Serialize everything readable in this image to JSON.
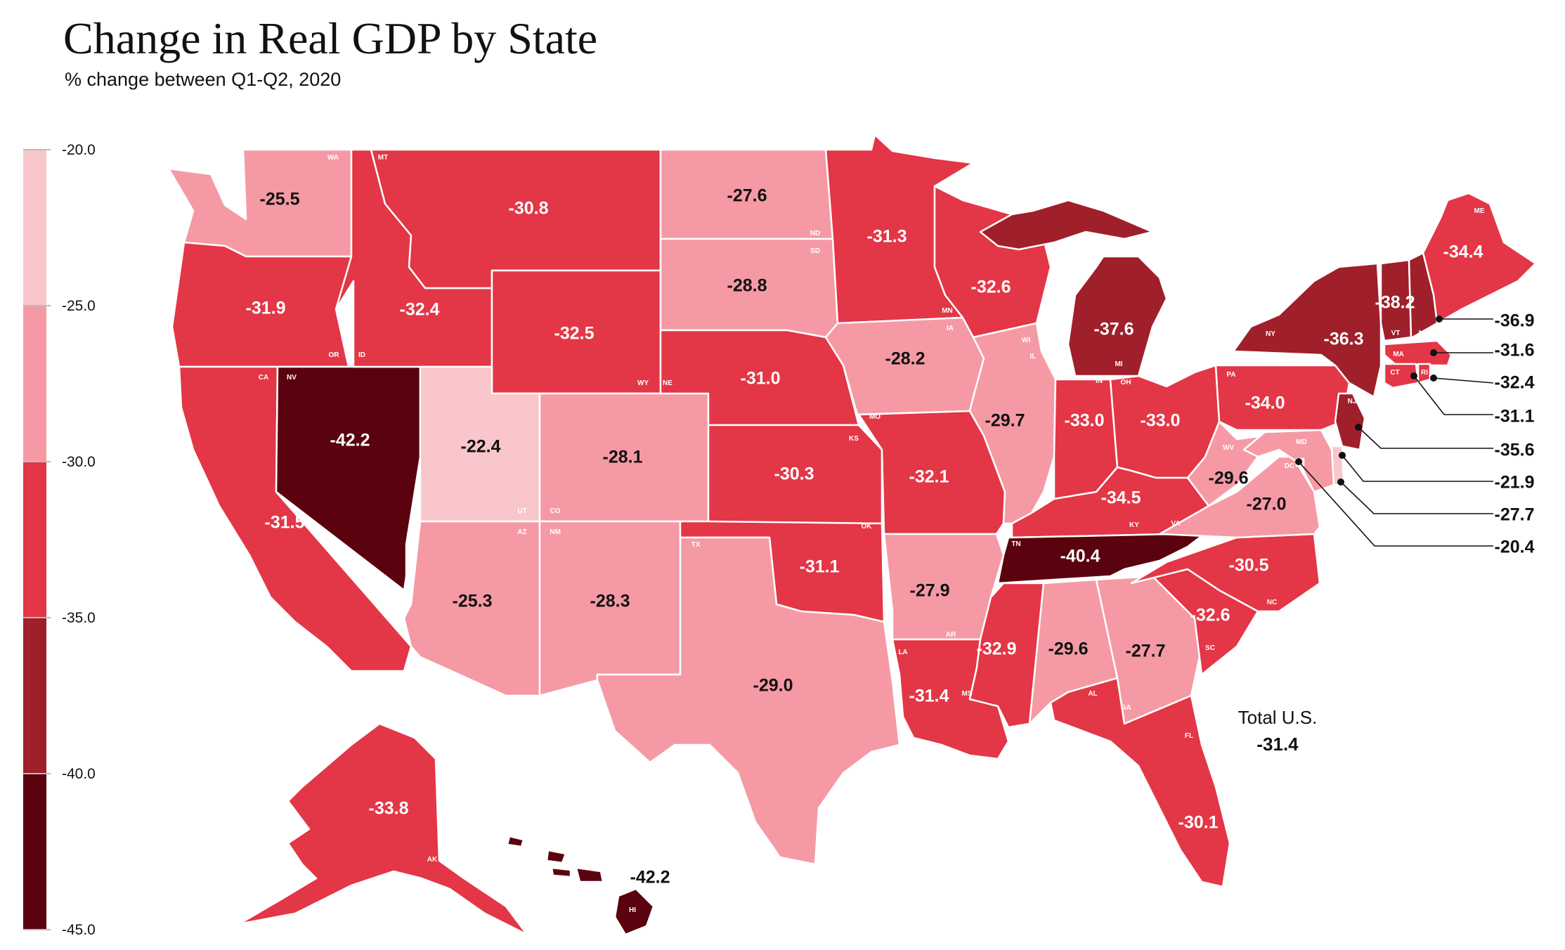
{
  "title": "Change in Real GDP by State",
  "subtitle": "% change between Q1-Q2, 2020",
  "legend": {
    "ticks": [
      "-20.0",
      "-25.0",
      "-30.0",
      "-35.0",
      "-40.0",
      "-45.0"
    ],
    "bins": [
      {
        "min": -25,
        "max": -20,
        "color": "#f9c6cb"
      },
      {
        "min": -30,
        "max": -25,
        "color": "#f59aa5"
      },
      {
        "min": -35,
        "max": -30,
        "color": "#e33646"
      },
      {
        "min": -40,
        "max": -35,
        "color": "#9f1f2a"
      },
      {
        "min": -45,
        "max": -40,
        "color": "#5a020d"
      }
    ]
  },
  "total_us": {
    "label": "Total U.S.",
    "value": "-31.4"
  },
  "states": [
    {
      "abbr": "WA",
      "value": "-25.5"
    },
    {
      "abbr": "OR",
      "value": "-31.9"
    },
    {
      "abbr": "CA",
      "value": "-31.5"
    },
    {
      "abbr": "NV",
      "value": "-42.2"
    },
    {
      "abbr": "ID",
      "value": "-32.4"
    },
    {
      "abbr": "MT",
      "value": "-30.8"
    },
    {
      "abbr": "WY",
      "value": "-32.5"
    },
    {
      "abbr": "UT",
      "value": "-22.4"
    },
    {
      "abbr": "CO",
      "value": "-28.1"
    },
    {
      "abbr": "AZ",
      "value": "-25.3"
    },
    {
      "abbr": "NM",
      "value": "-28.3"
    },
    {
      "abbr": "ND",
      "value": "-27.6"
    },
    {
      "abbr": "SD",
      "value": "-28.8"
    },
    {
      "abbr": "NE",
      "value": "-31.0"
    },
    {
      "abbr": "KS",
      "value": "-30.3"
    },
    {
      "abbr": "OK",
      "value": "-31.1"
    },
    {
      "abbr": "TX",
      "value": "-29.0"
    },
    {
      "abbr": "MN",
      "value": "-31.3"
    },
    {
      "abbr": "IA",
      "value": "-28.2"
    },
    {
      "abbr": "MO",
      "value": "-32.1"
    },
    {
      "abbr": "AR",
      "value": "-27.9"
    },
    {
      "abbr": "LA",
      "value": "-31.4"
    },
    {
      "abbr": "WI",
      "value": "-32.6"
    },
    {
      "abbr": "IL",
      "value": "-29.7"
    },
    {
      "abbr": "MI",
      "value": "-37.6"
    },
    {
      "abbr": "IN",
      "value": "-33.0"
    },
    {
      "abbr": "OH",
      "value": "-33.0"
    },
    {
      "abbr": "KY",
      "value": "-34.5"
    },
    {
      "abbr": "TN",
      "value": "-40.4"
    },
    {
      "abbr": "MS",
      "value": "-32.9"
    },
    {
      "abbr": "AL",
      "value": "-29.6"
    },
    {
      "abbr": "GA",
      "value": "-27.7"
    },
    {
      "abbr": "FL",
      "value": "-30.1"
    },
    {
      "abbr": "SC",
      "value": "-32.6"
    },
    {
      "abbr": "NC",
      "value": "-30.5"
    },
    {
      "abbr": "VA",
      "value": "-27.0"
    },
    {
      "abbr": "WV",
      "value": "-29.6"
    },
    {
      "abbr": "PA",
      "value": "-34.0"
    },
    {
      "abbr": "NY",
      "value": "-36.3"
    },
    {
      "abbr": "VT",
      "value": "-38.2"
    },
    {
      "abbr": "ME",
      "value": "-34.4"
    },
    {
      "abbr": "NH",
      "value": "-36.9"
    },
    {
      "abbr": "MA",
      "value": "-31.6"
    },
    {
      "abbr": "RI",
      "value": "-32.4"
    },
    {
      "abbr": "CT",
      "value": "-31.1"
    },
    {
      "abbr": "NJ",
      "value": "-35.6"
    },
    {
      "abbr": "DE",
      "value": "-21.9"
    },
    {
      "abbr": "MD",
      "value": "-27.7"
    },
    {
      "abbr": "DC",
      "value": "-20.4"
    },
    {
      "abbr": "AK",
      "value": "-33.8"
    },
    {
      "abbr": "HI",
      "value": "-42.2"
    }
  ]
}
